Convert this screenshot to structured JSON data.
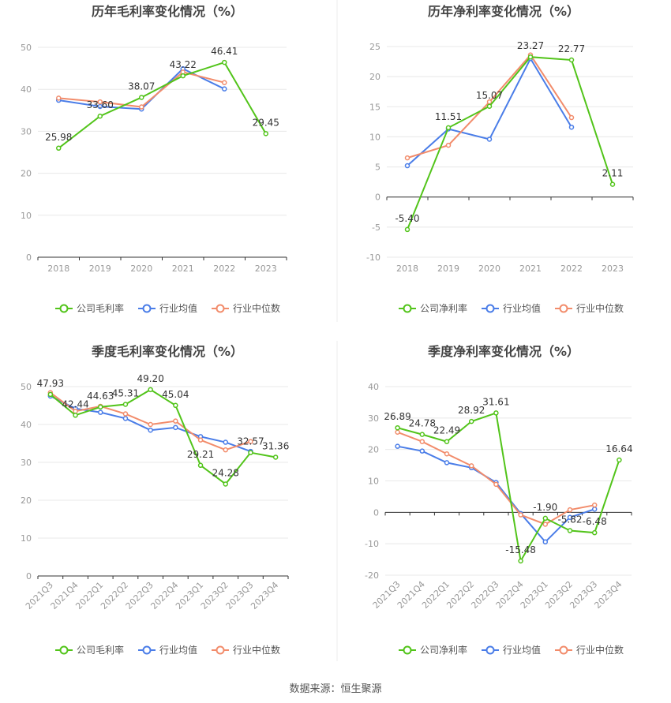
{
  "colors": {
    "company": "#52c41a",
    "industry_avg": "#4a7de8",
    "industry_median": "#f28c6b",
    "grid": "#e8e8e8",
    "axis_text": "#999999",
    "title_text": "#444444",
    "divider": "#eeeeee"
  },
  "source_text": "数据来源：恒生聚源",
  "chart_data": [
    {
      "type": "line",
      "title": "历年毛利率变化情况（%）",
      "categories": [
        "2018",
        "2019",
        "2020",
        "2021",
        "2022",
        "2023"
      ],
      "ylim": [
        0,
        50
      ],
      "yticks": [
        "0",
        "10",
        "20",
        "30",
        "40",
        "50"
      ],
      "grid": true,
      "legend_position": "bottom",
      "series": [
        {
          "name": "公司毛利率",
          "role": "company",
          "values": [
            25.98,
            33.6,
            38.07,
            43.22,
            46.41,
            29.45
          ],
          "labels": [
            "25.98",
            "33.60",
            "38.07",
            "43.22",
            "46.41",
            "29.45"
          ]
        },
        {
          "name": "行业均值",
          "role": "industry_avg",
          "values": [
            37.4,
            35.9,
            35.3,
            44.9,
            40.1,
            null
          ]
        },
        {
          "name": "行业中位数",
          "role": "industry_median",
          "values": [
            37.9,
            37.0,
            35.8,
            44.1,
            41.6,
            null
          ]
        }
      ]
    },
    {
      "type": "line",
      "title": "历年净利率变化情况（%）",
      "categories": [
        "2018",
        "2019",
        "2020",
        "2021",
        "2022",
        "2023"
      ],
      "ylim": [
        -10,
        25
      ],
      "yticks": [
        "-10",
        "-5",
        "0",
        "5",
        "10",
        "15",
        "20",
        "25"
      ],
      "grid": true,
      "legend_position": "bottom",
      "series": [
        {
          "name": "公司净利率",
          "role": "company",
          "values": [
            -5.4,
            11.51,
            15.07,
            23.27,
            22.77,
            2.11
          ],
          "labels": [
            "-5.40",
            "11.51",
            "15.07",
            "23.27",
            "22.77",
            "2.11"
          ]
        },
        {
          "name": "行业均值",
          "role": "industry_avg",
          "values": [
            5.2,
            11.3,
            9.6,
            23.0,
            11.6,
            null
          ]
        },
        {
          "name": "行业中位数",
          "role": "industry_median",
          "values": [
            6.5,
            8.6,
            15.8,
            23.6,
            13.2,
            null
          ]
        }
      ]
    },
    {
      "type": "line",
      "title": "季度毛利率变化情况（%）",
      "categories": [
        "2021Q3",
        "2021Q4",
        "2022Q1",
        "2022Q2",
        "2022Q3",
        "2022Q4",
        "2023Q1",
        "2023Q2",
        "2023Q3",
        "2023Q4"
      ],
      "ylim": [
        0,
        50
      ],
      "yticks": [
        "0",
        "10",
        "20",
        "30",
        "40",
        "50"
      ],
      "grid": true,
      "legend_position": "bottom",
      "series": [
        {
          "name": "公司毛利率",
          "role": "company",
          "values": [
            47.93,
            42.44,
            44.63,
            45.31,
            49.2,
            45.04,
            29.21,
            24.28,
            32.57,
            31.36
          ],
          "labels": [
            "47.93",
            "42.44",
            "44.63",
            "45.31",
            "49.20",
            "45.04",
            "29.21",
            "24.28",
            "32.57",
            "31.36"
          ]
        },
        {
          "name": "行业均值",
          "role": "industry_avg",
          "values": [
            47.5,
            44.2,
            43.2,
            41.6,
            38.5,
            39.2,
            36.8,
            35.3,
            32.9,
            null
          ]
        },
        {
          "name": "行业中位数",
          "role": "industry_median",
          "values": [
            48.4,
            43.5,
            44.8,
            42.8,
            40.0,
            40.9,
            35.9,
            33.3,
            35.5,
            null
          ]
        }
      ]
    },
    {
      "type": "line",
      "title": "季度净利率变化情况（%）",
      "categories": [
        "2021Q3",
        "2021Q4",
        "2022Q1",
        "2022Q2",
        "2022Q3",
        "2022Q4",
        "2023Q1",
        "2023Q2",
        "2023Q3",
        "2023Q4"
      ],
      "ylim": [
        -20,
        40
      ],
      "yticks": [
        "-20",
        "-10",
        "0",
        "10",
        "20",
        "30",
        "40"
      ],
      "grid": true,
      "legend_position": "bottom",
      "series": [
        {
          "name": "公司净利率",
          "role": "company",
          "values": [
            26.89,
            24.78,
            22.49,
            28.92,
            31.61,
            -15.48,
            -1.9,
            -5.82,
            -6.48,
            16.64
          ],
          "labels": [
            "26.89",
            "24.78",
            "22.49",
            "28.92",
            "31.61",
            "-15.48",
            "-1.90",
            "-5.82",
            "-6.48",
            "16.64"
          ]
        },
        {
          "name": "行业均值",
          "role": "industry_avg",
          "values": [
            21.0,
            19.5,
            15.8,
            14.2,
            9.5,
            -0.4,
            -9.4,
            -1.6,
            1.0,
            null
          ]
        },
        {
          "name": "行业中位数",
          "role": "industry_median",
          "values": [
            25.5,
            22.5,
            18.6,
            14.8,
            8.9,
            -0.8,
            -3.8,
            0.8,
            2.3,
            null
          ]
        }
      ]
    }
  ]
}
